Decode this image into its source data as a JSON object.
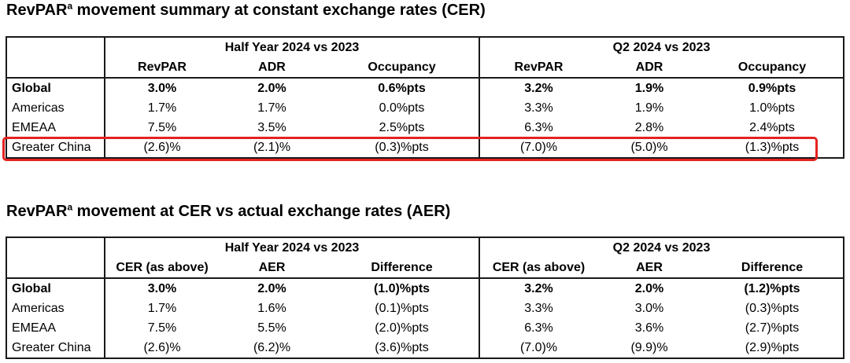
{
  "colors": {
    "highlight_box_red": "#e42320",
    "table_border": "#1a1a1a",
    "text": "#000000",
    "background": "#ffffff"
  },
  "annotations": {
    "highlight_box": {
      "table": "cer-summary",
      "row": "Greater China",
      "color": "#e42320"
    }
  },
  "table1": {
    "title": {
      "base": "RevPAR",
      "sup": "a",
      "rest": " movement summary at constant exchange rates (CER)"
    },
    "groups": [
      "Half Year 2024 vs 2023",
      "Q2 2024 vs 2023"
    ],
    "columns": [
      "RevPAR",
      "ADR",
      "Occupancy",
      "RevPAR",
      "ADR",
      "Occupancy"
    ],
    "rows": [
      {
        "label": "Global",
        "emphasis": true,
        "highlighted": false,
        "values": [
          "3.0%",
          "2.0%",
          "0.6%pts",
          "3.2%",
          "1.9%",
          "0.9%pts"
        ]
      },
      {
        "label": "Americas",
        "emphasis": false,
        "highlighted": false,
        "values": [
          "1.7%",
          "1.7%",
          "0.0%pts",
          "3.3%",
          "1.9%",
          "1.0%pts"
        ]
      },
      {
        "label": "EMEAA",
        "emphasis": false,
        "highlighted": false,
        "values": [
          "7.5%",
          "3.5%",
          "2.5%pts",
          "6.3%",
          "2.8%",
          "2.4%pts"
        ]
      },
      {
        "label": "Greater China",
        "emphasis": false,
        "highlighted": true,
        "values": [
          "(2.6)%",
          "(2.1)%",
          "(0.3)%pts",
          "(7.0)%",
          "(5.0)%",
          "(1.3)%pts"
        ]
      }
    ]
  },
  "table2": {
    "title": {
      "base": "RevPAR",
      "sup": "a",
      "rest": " movement at CER vs actual exchange rates (AER)"
    },
    "groups": [
      "Half Year 2024 vs 2023",
      "Q2 2024 vs 2023"
    ],
    "columns": [
      "CER (as above)",
      "AER",
      "Difference",
      "CER (as above)",
      "AER",
      "Difference"
    ],
    "rows": [
      {
        "label": "Global",
        "emphasis": true,
        "highlighted": false,
        "values": [
          "3.0%",
          "2.0%",
          "(1.0)%pts",
          "3.2%",
          "2.0%",
          "(1.2)%pts"
        ]
      },
      {
        "label": "Americas",
        "emphasis": false,
        "highlighted": false,
        "values": [
          "1.7%",
          "1.6%",
          "(0.1)%pts",
          "3.3%",
          "3.0%",
          "(0.3)%pts"
        ]
      },
      {
        "label": "EMEAA",
        "emphasis": false,
        "highlighted": false,
        "values": [
          "7.5%",
          "5.5%",
          "(2.0)%pts",
          "6.3%",
          "3.6%",
          "(2.7)%pts"
        ]
      },
      {
        "label": "Greater China",
        "emphasis": false,
        "highlighted": false,
        "values": [
          "(2.6)%",
          "(6.2)%",
          "(3.6)%pts",
          "(7.0)%",
          "(9.9)%",
          "(2.9)%pts"
        ]
      }
    ]
  }
}
